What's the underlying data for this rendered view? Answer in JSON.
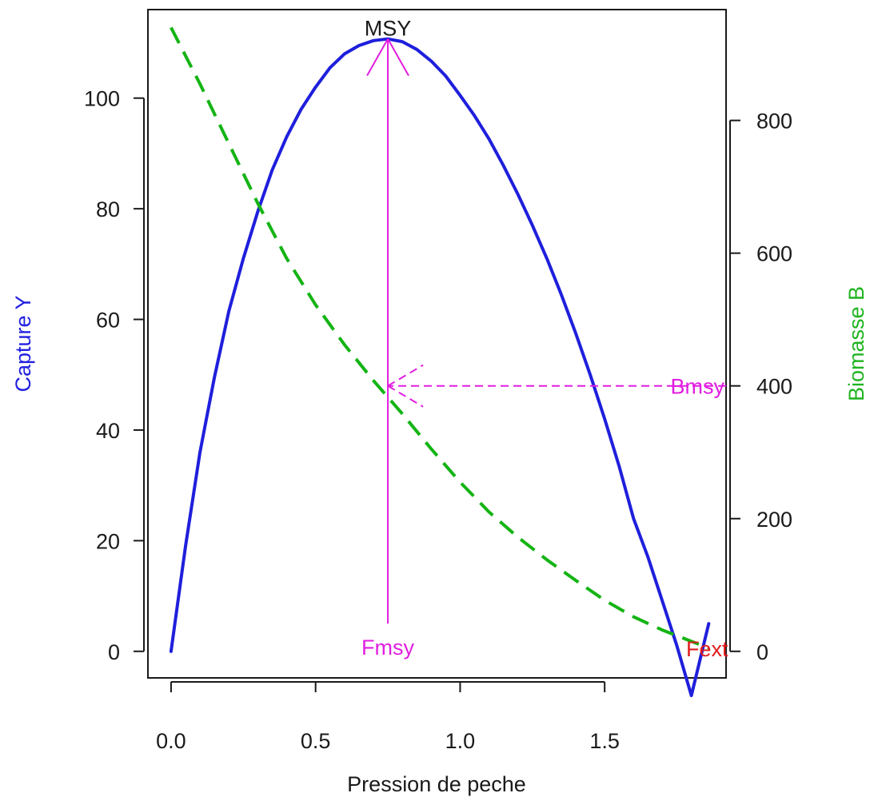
{
  "chart_data": {
    "type": "line",
    "xlabel": "Pression de peche",
    "ylabel_left": "Capture Y",
    "ylabel_right": "Biomasse B",
    "xlim": [
      -0.08,
      1.92
    ],
    "ylim_left": [
      -4.8,
      116
    ],
    "ylim_right": [
      -40,
      967
    ],
    "x_ticks": [
      0.0,
      0.5,
      1.0,
      1.5
    ],
    "x_tick_labels": [
      "0.0",
      "0.5",
      "1.0",
      "1.5"
    ],
    "y_left_ticks": [
      0,
      20,
      40,
      60,
      80,
      100
    ],
    "y_left_tick_labels": [
      "0",
      "20",
      "40",
      "60",
      "80",
      "100"
    ],
    "y_right_ticks": [
      0,
      200,
      400,
      600,
      800
    ],
    "y_right_tick_labels": [
      "0",
      "200",
      "400",
      "600",
      "800"
    ],
    "grid": false,
    "series": [
      {
        "axis": "left",
        "style": "solid",
        "color": "#1f1fdc",
        "x": [
          0,
          0.05,
          0.1,
          0.15,
          0.2,
          0.25,
          0.3,
          0.35,
          0.4,
          0.45,
          0.5,
          0.55,
          0.6,
          0.65,
          0.7,
          0.75,
          0.8,
          0.85,
          0.9,
          0.95,
          1.0,
          1.05,
          1.1,
          1.15,
          1.2,
          1.25,
          1.3,
          1.35,
          1.4,
          1.45,
          1.5,
          1.55,
          1.6,
          1.65,
          1.7,
          1.75,
          1.8,
          1.86
        ],
        "y": [
          0,
          19,
          36,
          49.5,
          61.5,
          71,
          79.5,
          87,
          93,
          98,
          102,
          105.5,
          108,
          109.5,
          110.4,
          110.7,
          110.2,
          108.8,
          106.7,
          104,
          100.5,
          96.8,
          92.6,
          87.8,
          82.6,
          77,
          71,
          64.5,
          57.5,
          50,
          42,
          33.5,
          24,
          17,
          9,
          1,
          -8,
          5
        ]
      },
      {
        "axis": "right",
        "style": "dashed",
        "color": "#14b414",
        "x": [
          0,
          0.1,
          0.2,
          0.3,
          0.4,
          0.5,
          0.6,
          0.7,
          0.75,
          0.8,
          0.9,
          1.0,
          1.1,
          1.2,
          1.3,
          1.4,
          1.5,
          1.6,
          1.7,
          1.8,
          1.86
        ],
        "y": [
          940,
          855,
          765,
          675,
          592,
          522,
          462,
          408,
          383,
          358,
          305,
          255,
          210,
          172,
          138,
          107,
          77,
          52,
          32,
          15,
          5
        ]
      }
    ],
    "annotations": {
      "msy": {
        "label": "MSY",
        "x": 0.75,
        "y": 110.7,
        "color": "#1a1a1a"
      },
      "fmsy": {
        "label": "Fmsy",
        "x": 0.75,
        "color": "#e11ee1"
      },
      "bmsy": {
        "label": "Bmsy",
        "y_right": 400,
        "color": "#e11ee1"
      },
      "fext": {
        "label": "Fext",
        "x": 1.86,
        "color": "#e01c1c"
      }
    },
    "colors": {
      "axis": "#1a1a1a",
      "left_axis_label": "#2020e0",
      "right_axis_label": "#1fb41f",
      "arrows": "#e11ee1"
    }
  }
}
